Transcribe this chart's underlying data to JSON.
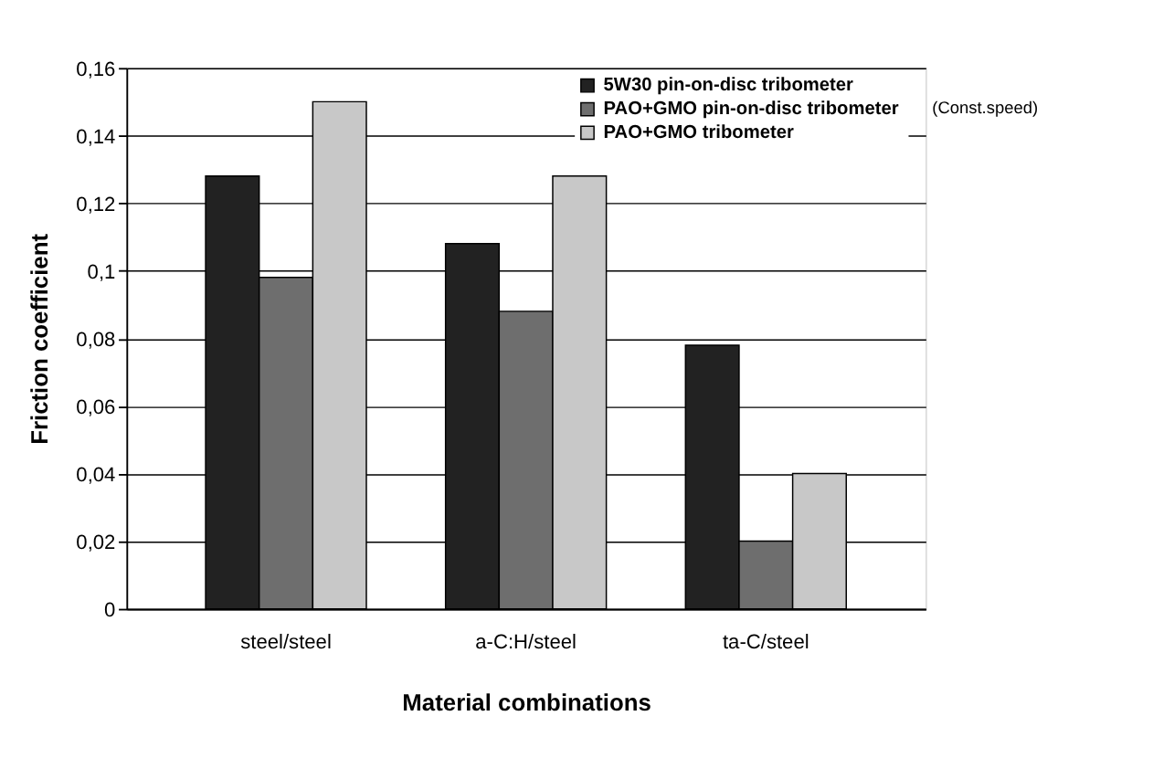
{
  "chart_data": {
    "type": "bar",
    "xlabel": "Material combinations",
    "ylabel": "Friction coefficient",
    "categories": [
      "steel/steel",
      "a-C:H/steel",
      "ta-C/steel"
    ],
    "series": [
      {
        "name": "5W30  pin-on-disc tribometer",
        "color": "#222222",
        "values": [
          0.128,
          0.108,
          0.078
        ]
      },
      {
        "name": "PAO+GMO  pin-on-disc tribometer",
        "color": "#6e6e6e",
        "values": [
          0.098,
          0.088,
          0.02
        ]
      },
      {
        "name": "PAO+GMO tribometer",
        "color": "#c8c8c8",
        "values": [
          0.15,
          0.128,
          0.04
        ]
      }
    ],
    "ylim": [
      0,
      0.16
    ],
    "yticks": [
      {
        "value": 0,
        "label": "0"
      },
      {
        "value": 0.02,
        "label": "0,02"
      },
      {
        "value": 0.04,
        "label": "0,04"
      },
      {
        "value": 0.06,
        "label": "0,06"
      },
      {
        "value": 0.08,
        "label": "0,08"
      },
      {
        "value": 0.1,
        "label": "0,1"
      },
      {
        "value": 0.12,
        "label": "0,12"
      },
      {
        "value": 0.14,
        "label": "0,14"
      },
      {
        "value": 0.16,
        "label": "0,16"
      }
    ],
    "grid": "y",
    "legend": "top right",
    "annotations": [
      "(Const.speed)"
    ]
  }
}
